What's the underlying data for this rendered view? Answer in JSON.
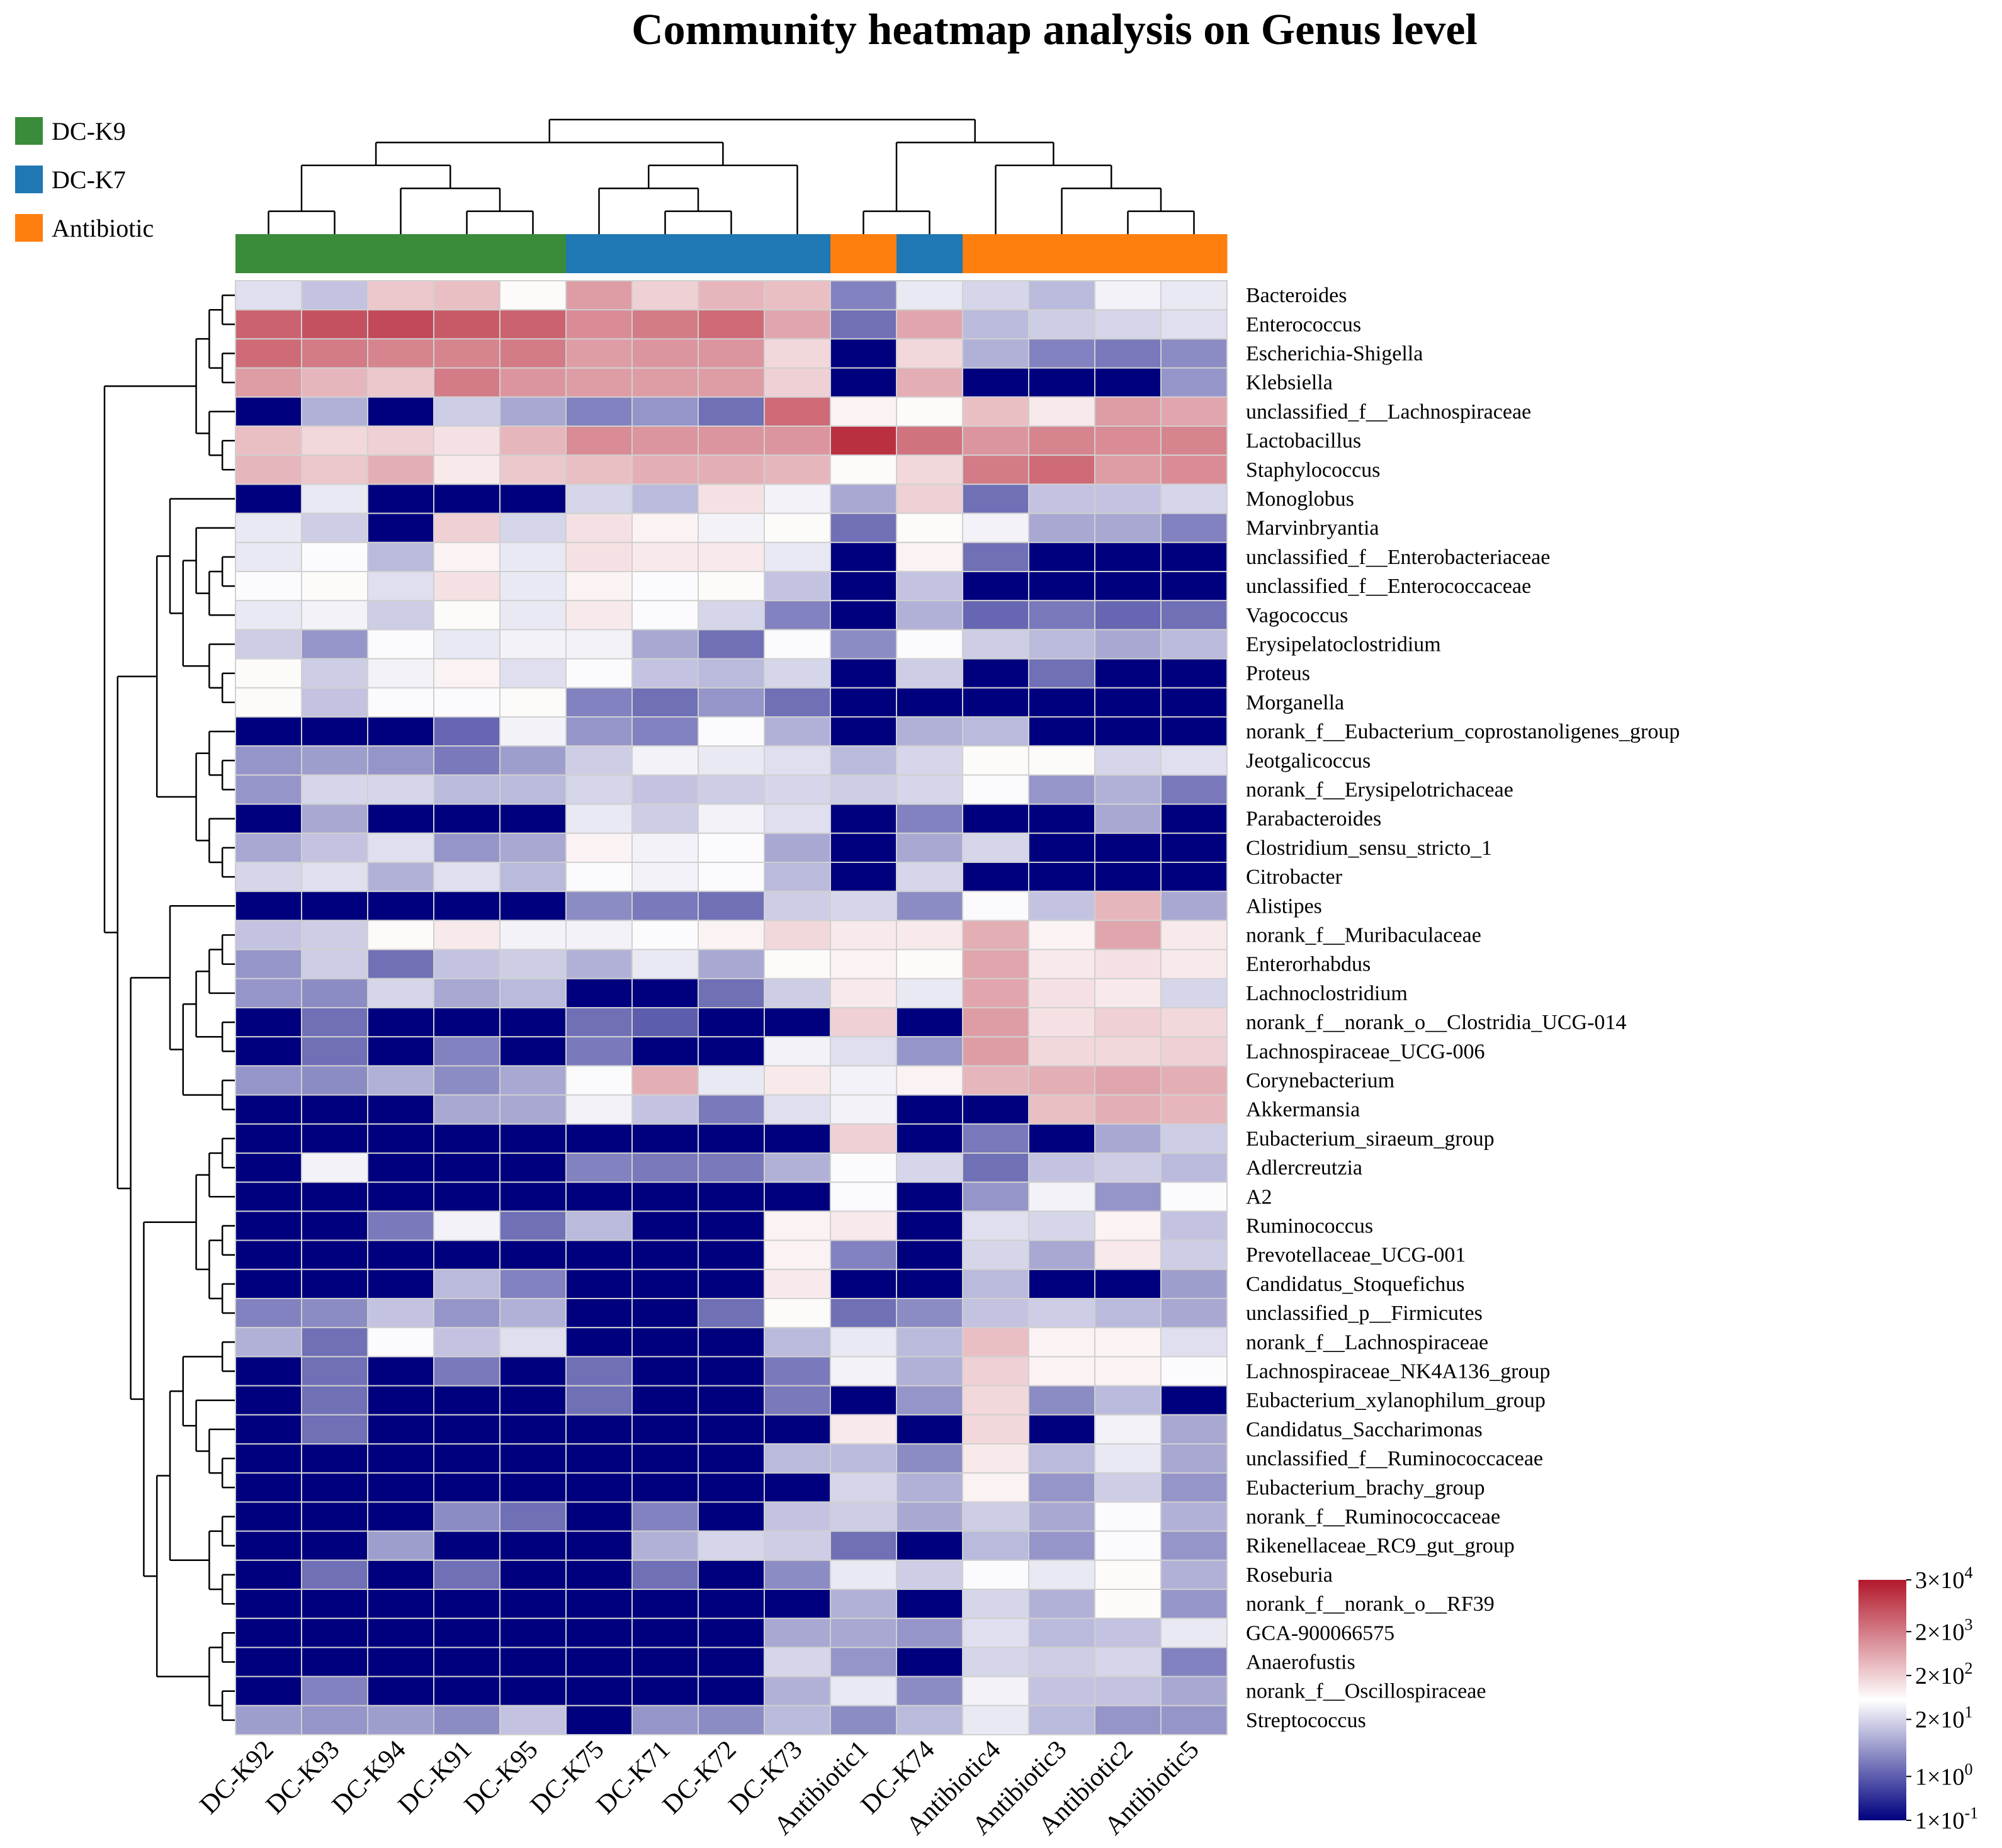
{
  "chart_data": {
    "type": "heatmap",
    "title": "Community heatmap analysis on Genus level",
    "groups": [
      {
        "name": "DC-K9",
        "color": "#3a8c3a"
      },
      {
        "name": "DC-K7",
        "color": "#1f77b4"
      },
      {
        "name": "Antibiotic",
        "color": "#ff7f0e"
      }
    ],
    "columns": [
      "DC-K92",
      "DC-K93",
      "DC-K94",
      "DC-K91",
      "DC-K95",
      "DC-K75",
      "DC-K71",
      "DC-K72",
      "DC-K73",
      "Antibiotic1",
      "DC-K74",
      "Antibiotic4",
      "Antibiotic3",
      "Antibiotic2",
      "Antibiotic5"
    ],
    "column_groups": [
      "DC-K9",
      "DC-K9",
      "DC-K9",
      "DC-K9",
      "DC-K9",
      "DC-K7",
      "DC-K7",
      "DC-K7",
      "DC-K7",
      "Antibiotic",
      "DC-K7",
      "Antibiotic",
      "Antibiotic",
      "Antibiotic",
      "Antibiotic"
    ],
    "rows": [
      "Bacteroides",
      "Enterococcus",
      "Escherichia-Shigella",
      "Klebsiella",
      "unclassified_f__Lachnospiraceae",
      "Lactobacillus",
      "Staphylococcus",
      "Monoglobus",
      "Marvinbryantia",
      "unclassified_f__Enterobacteriaceae",
      "unclassified_f__Enterococcaceae",
      "Vagococcus",
      "Erysipelatoclostridium",
      "Proteus",
      "Morganella",
      "norank_f__Eubacterium_coprostanoligenes_group",
      "Jeotgalicoccus",
      "norank_f__Erysipelotrichaceae",
      "Parabacteroides",
      "Clostridium_sensu_stricto_1",
      "Citrobacter",
      "Alistipes",
      "norank_f__Muribaculaceae",
      "Enterorhabdus",
      "Lachnoclostridium",
      "norank_f__norank_o__Clostridia_UCG-014",
      "Lachnospiraceae_UCG-006",
      "Corynebacterium",
      "Akkermansia",
      "Eubacterium_siraeum_group",
      "Adlercreutzia",
      "A2",
      "Ruminococcus",
      "Prevotellaceae_UCG-001",
      "Candidatus_Stoquefichus",
      "unclassified_p__Firmicutes",
      "norank_f__Lachnospiraceae",
      "Lachnospiraceae_NK4A136_group",
      "Eubacterium_xylanophilum_group",
      "Candidatus_Saccharimonas",
      "unclassified_f__Ruminococcaceae",
      "Eubacterium_brachy_group",
      "norank_f__Ruminococcaceae",
      "Rikenellaceae_RC9_gut_group",
      "Roseburia",
      "norank_f__norank_o__RF39",
      "GCA-900066575",
      "Anaerofustis",
      "norank_f__Oscillospiraceae",
      "Streptococcus"
    ],
    "value_scale": "log10 abundance",
    "values": [
      [
        1.4,
        1.1,
        2.4,
        2.5,
        1.8,
        2.9,
        2.3,
        2.6,
        2.5,
        0.4,
        1.5,
        1.3,
        1.0,
        1.6,
        1.5
      ],
      [
        3.6,
        3.8,
        3.9,
        3.7,
        3.6,
        3.1,
        3.3,
        3.5,
        2.8,
        0.2,
        2.8,
        1.0,
        1.2,
        1.3,
        1.4
      ],
      [
        3.5,
        3.3,
        3.2,
        3.2,
        3.3,
        2.9,
        3.0,
        3.0,
        2.2,
        -1,
        2.2,
        0.9,
        0.4,
        0.3,
        0.5
      ],
      [
        2.9,
        2.6,
        2.4,
        3.3,
        3.0,
        2.9,
        2.9,
        2.9,
        2.3,
        -1,
        2.7,
        -1,
        -1,
        -1,
        0.6
      ],
      [
        -1,
        0.9,
        -1,
        1.2,
        0.8,
        0.4,
        0.6,
        0.2,
        3.5,
        1.9,
        1.8,
        2.5,
        2.0,
        2.9,
        2.8
      ],
      [
        2.5,
        2.2,
        2.3,
        2.1,
        2.6,
        3.1,
        3.0,
        3.0,
        3.0,
        4.2,
        3.4,
        3.0,
        3.2,
        3.1,
        3.2
      ],
      [
        2.6,
        2.4,
        2.7,
        2.0,
        2.4,
        2.5,
        2.7,
        2.7,
        2.6,
        1.8,
        2.2,
        3.3,
        3.5,
        2.9,
        3.1
      ],
      [
        -1,
        1.5,
        -1,
        -1,
        -1,
        1.3,
        1.0,
        2.1,
        1.6,
        0.8,
        2.3,
        0.2,
        1.1,
        1.1,
        1.3
      ],
      [
        1.5,
        1.2,
        -1,
        2.3,
        1.3,
        2.1,
        1.9,
        1.6,
        1.8,
        0.2,
        1.8,
        1.6,
        0.8,
        0.8,
        0.4
      ],
      [
        1.5,
        1.7,
        1.0,
        1.9,
        1.5,
        2.1,
        2.0,
        2.0,
        1.5,
        -1,
        1.9,
        0.2,
        -1,
        -1,
        -1
      ],
      [
        1.7,
        1.8,
        1.4,
        2.1,
        1.5,
        1.9,
        1.7,
        1.8,
        1.1,
        -1,
        1.1,
        -1,
        -1,
        -1,
        -1
      ],
      [
        1.5,
        1.6,
        1.2,
        1.8,
        1.5,
        2.0,
        1.7,
        1.3,
        0.4,
        -1,
        0.9,
        0.1,
        0.3,
        0.1,
        0.2
      ],
      [
        1.2,
        0.6,
        1.7,
        1.5,
        1.6,
        1.6,
        0.8,
        0.2,
        1.7,
        0.5,
        1.7,
        1.2,
        1.0,
        0.8,
        1.0
      ],
      [
        1.8,
        1.2,
        1.6,
        1.9,
        1.4,
        1.7,
        1.1,
        1.0,
        1.3,
        -1,
        1.2,
        -1,
        0.2,
        -1,
        -1
      ],
      [
        1.8,
        1.1,
        1.7,
        1.7,
        1.8,
        0.4,
        0.2,
        0.6,
        0.2,
        -1,
        -1,
        -1,
        -1,
        -1,
        -1
      ],
      [
        -1,
        -1,
        -1,
        0.1,
        1.6,
        0.6,
        0.4,
        1.7,
        0.9,
        -1,
        0.9,
        1.0,
        -1,
        -1,
        -1
      ],
      [
        0.6,
        0.7,
        0.6,
        0.3,
        0.7,
        1.2,
        1.6,
        1.5,
        1.4,
        1.0,
        1.3,
        1.8,
        1.8,
        1.3,
        1.4
      ],
      [
        0.6,
        1.3,
        1.3,
        1.0,
        1.0,
        1.3,
        1.1,
        1.2,
        1.3,
        1.2,
        1.3,
        1.7,
        0.6,
        0.9,
        0.3
      ],
      [
        -1,
        0.8,
        -1,
        -1,
        -1,
        1.5,
        1.2,
        1.6,
        1.4,
        -1,
        0.4,
        -1,
        -1,
        0.8,
        -1
      ],
      [
        0.8,
        1.1,
        1.4,
        0.6,
        0.8,
        1.9,
        1.6,
        1.7,
        0.8,
        -1,
        0.8,
        1.3,
        -1,
        -1,
        -1
      ],
      [
        1.3,
        1.4,
        0.9,
        1.4,
        1.0,
        1.7,
        1.6,
        1.7,
        1.0,
        -1,
        1.3,
        -1,
        -1,
        -1,
        -1
      ],
      [
        -1,
        -1,
        -1,
        -1,
        -1,
        0.5,
        0.3,
        0.2,
        1.2,
        1.3,
        0.5,
        1.7,
        1.1,
        2.6,
        0.8
      ],
      [
        1.1,
        1.2,
        1.8,
        2.0,
        1.6,
        1.6,
        1.7,
        1.9,
        2.2,
        2.0,
        2.0,
        2.7,
        1.9,
        2.8,
        2.0
      ],
      [
        0.6,
        1.2,
        0.2,
        1.1,
        1.2,
        0.9,
        1.5,
        0.8,
        1.8,
        1.9,
        1.8,
        2.8,
        2.0,
        2.1,
        2.0
      ],
      [
        0.6,
        0.5,
        1.3,
        0.8,
        1.0,
        -1,
        -1,
        0.2,
        1.2,
        2.0,
        1.5,
        2.8,
        2.1,
        2.0,
        1.3
      ],
      [
        -1,
        0.2,
        -1,
        -1,
        -1,
        0.2,
        0.0,
        -1,
        -1,
        2.3,
        -1,
        2.9,
        2.1,
        2.3,
        2.2
      ],
      [
        -1,
        0.2,
        -1,
        0.4,
        -1,
        0.3,
        -1,
        -1,
        1.6,
        1.4,
        0.6,
        2.9,
        2.2,
        2.2,
        2.3
      ],
      [
        0.6,
        0.5,
        0.9,
        0.5,
        0.8,
        1.7,
        2.7,
        1.5,
        2.0,
        1.6,
        1.9,
        2.6,
        2.7,
        2.8,
        2.7
      ],
      [
        -1,
        -1,
        -1,
        0.8,
        0.8,
        1.6,
        1.1,
        0.3,
        1.4,
        1.6,
        -1,
        -1,
        2.5,
        2.7,
        2.6
      ],
      [
        -1,
        -1,
        -1,
        -1,
        -1,
        -1,
        -1,
        -1,
        -1,
        2.3,
        -1,
        0.3,
        -1,
        0.8,
        1.2
      ],
      [
        -1,
        1.6,
        -1,
        -1,
        -1,
        0.4,
        0.3,
        0.3,
        0.9,
        1.7,
        1.3,
        0.2,
        1.1,
        1.2,
        1.0
      ],
      [
        -1,
        -1,
        -1,
        -1,
        -1,
        -1,
        -1,
        -1,
        -1,
        1.7,
        -1,
        0.6,
        1.6,
        0.6,
        1.7
      ],
      [
        -1,
        -1,
        0.3,
        1.6,
        0.2,
        1.0,
        -1,
        -1,
        1.9,
        2.0,
        -1,
        1.4,
        1.3,
        1.9,
        1.1
      ],
      [
        -1,
        -1,
        -1,
        -1,
        -1,
        -1,
        -1,
        -1,
        1.9,
        0.4,
        -1,
        1.3,
        0.8,
        2.0,
        1.2
      ],
      [
        -1,
        -1,
        -1,
        1.0,
        0.4,
        -1,
        -1,
        -1,
        2.0,
        -1,
        -1,
        1.0,
        -1,
        -1,
        0.7
      ],
      [
        0.4,
        0.5,
        1.1,
        0.6,
        0.9,
        -1,
        -1,
        0.2,
        1.8,
        0.2,
        0.5,
        1.1,
        1.2,
        1.0,
        0.8
      ],
      [
        0.9,
        0.2,
        1.7,
        1.1,
        1.4,
        -1,
        -1,
        -1,
        1.0,
        1.5,
        1.0,
        2.5,
        1.9,
        1.9,
        1.4
      ],
      [
        -1,
        0.2,
        -1,
        0.3,
        -1,
        0.2,
        -1,
        -1,
        0.3,
        1.6,
        0.9,
        2.3,
        1.9,
        1.9,
        1.7
      ],
      [
        -1,
        0.2,
        -1,
        -1,
        -1,
        0.2,
        -1,
        -1,
        0.3,
        -1,
        0.6,
        2.2,
        0.5,
        1.0,
        -1
      ],
      [
        -1,
        0.2,
        -1,
        -1,
        -1,
        -1,
        -1,
        -1,
        -1,
        2.0,
        -1,
        2.2,
        -1,
        1.6,
        0.8
      ],
      [
        -1,
        -1,
        -1,
        -1,
        -1,
        -1,
        -1,
        -1,
        1.0,
        1.0,
        0.5,
        2.0,
        1.0,
        1.5,
        0.8
      ],
      [
        -1,
        -1,
        -1,
        -1,
        -1,
        -1,
        -1,
        -1,
        -1,
        1.3,
        0.9,
        1.9,
        0.6,
        1.2,
        0.6
      ],
      [
        -1,
        -1,
        -1,
        0.5,
        0.2,
        -1,
        0.4,
        -1,
        1.1,
        1.2,
        0.8,
        1.2,
        0.8,
        1.7,
        0.9
      ],
      [
        -1,
        -1,
        0.7,
        -1,
        -1,
        -1,
        0.9,
        1.3,
        1.2,
        0.2,
        -1,
        1.0,
        0.6,
        1.7,
        0.6
      ],
      [
        -1,
        0.2,
        -1,
        0.2,
        -1,
        -1,
        0.2,
        -1,
        0.5,
        1.5,
        1.2,
        1.7,
        1.5,
        1.8,
        0.9
      ],
      [
        -1,
        -1,
        -1,
        -1,
        -1,
        -1,
        -1,
        -1,
        -1,
        0.9,
        -1,
        1.3,
        0.9,
        1.8,
        0.6
      ],
      [
        -1,
        -1,
        -1,
        -1,
        -1,
        -1,
        -1,
        -1,
        0.8,
        0.8,
        0.6,
        1.4,
        1.0,
        1.1,
        1.5
      ],
      [
        -1,
        -1,
        -1,
        -1,
        -1,
        -1,
        -1,
        -1,
        1.3,
        0.6,
        -1,
        1.3,
        1.2,
        1.3,
        0.4
      ],
      [
        -1,
        0.4,
        -1,
        -1,
        -1,
        -1,
        -1,
        -1,
        0.9,
        1.5,
        0.5,
        1.6,
        1.1,
        1.1,
        0.8
      ],
      [
        0.7,
        0.6,
        0.7,
        0.5,
        1.1,
        -1,
        0.6,
        0.5,
        1.0,
        0.5,
        1.0,
        1.5,
        1.0,
        0.6,
        0.6
      ]
    ],
    "color_scale": {
      "min": -1,
      "max": 4.48,
      "colors": [
        "#00007f",
        "#ffffff",
        "#b2182b"
      ],
      "ticks": [
        {
          "value": 4.48,
          "base": "3×10",
          "exp": "4"
        },
        {
          "value": 3.3,
          "base": "2×10",
          "exp": "3"
        },
        {
          "value": 2.3,
          "base": "2×10",
          "exp": "2"
        },
        {
          "value": 1.3,
          "base": "2×10",
          "exp": "1"
        },
        {
          "value": 0,
          "base": "1×10",
          "exp": "0"
        },
        {
          "value": -1,
          "base": "1×10",
          "exp": "-1"
        }
      ]
    },
    "column_tree": [
      [
        [
          [
            [
              0,
              1
            ],
            [
              2,
              [
                3,
                4
              ]
            ]
          ],
          [
            [
              5,
              [
                6,
                7
              ]
            ],
            8
          ]
        ],
        [
          [
            9,
            10
          ],
          [
            11,
            [
              12,
              [
                13,
                14
              ]
            ]
          ]
        ]
      ]
    ],
    "row_tree": [
      [
        [
          [
            [
              0,
              1
            ],
            [
              2,
              3
            ]
          ],
          [
            4,
            [
              5,
              6
            ]
          ]
        ],
        [
          [
            [
              7,
              [
                [
                  8,
                  [
                    [
                      9,
                      10
                    ],
                    11
                  ]
                ],
                [
                  12,
                  [
                    13,
                    14
                  ]
                ]
              ]
            ],
            [
              [
                15,
                [
                  16,
                  17
                ]
              ],
              [
                18,
                [
                  19,
                  20
                ]
              ]
            ]
          ],
          [
            [
              21,
              [
                [
                  [
                    [
                      22,
                      23
                    ],
                    24
                  ],
                  [
                    25,
                    26
                  ]
                ],
                [
                  27,
                  28
                ]
              ]
            ],
            [
              [
                [
                  [
                    29,
                    30
                  ],
                  31
                ],
                [
                  [
                    32,
                    33
                  ],
                  [
                    34,
                    35
                  ]
                ]
              ],
              [
                [
                  [
                    [
                      36,
                      37
                    ],
                    [
                      38,
                      [
                        39,
                        [
                          40,
                          41
                        ]
                      ]
                    ]
                  ],
                  [
                    [
                      42,
                      43
                    ],
                    [
                      44,
                      45
                    ]
                  ]
                ],
                [
                  [
                    46,
                    47
                  ],
                  [
                    48,
                    49
                  ]
                ]
              ]
            ]
          ]
        ]
      ]
    ]
  }
}
